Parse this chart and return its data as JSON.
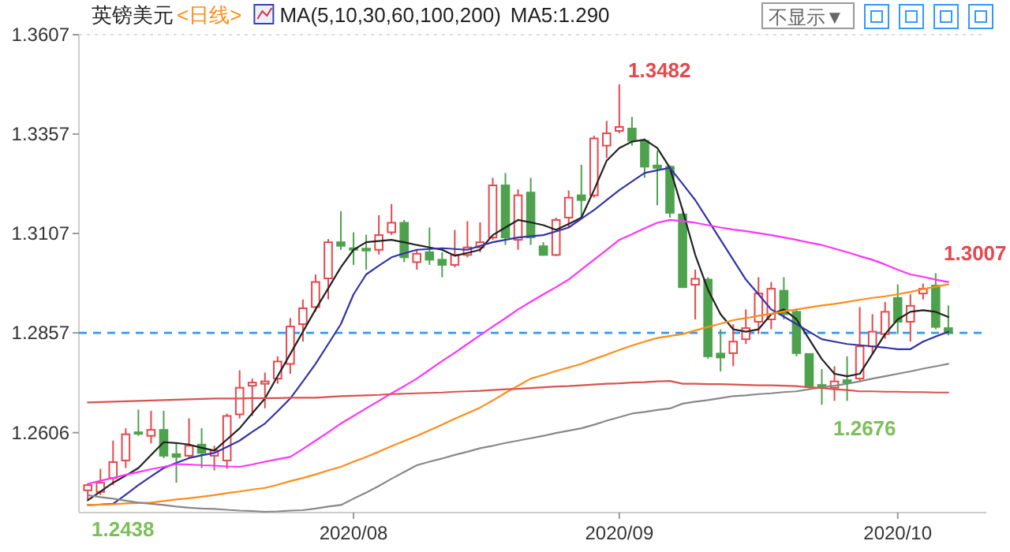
{
  "chart_data": {
    "type": "candlestick",
    "title": "英镑美元",
    "subtitle": "<日线>",
    "categories": [
      null,
      null,
      null,
      null,
      null,
      null,
      null,
      null,
      null,
      null,
      null,
      null,
      null,
      null,
      null,
      null,
      null,
      null,
      null,
      null,
      null,
      "2020/08",
      null,
      null,
      null,
      null,
      null,
      null,
      null,
      null,
      null,
      null,
      null,
      null,
      null,
      null,
      null,
      null,
      null,
      null,
      null,
      null,
      "2020/09",
      null,
      null,
      null,
      null,
      null,
      null,
      null,
      null,
      null,
      null,
      null,
      null,
      null,
      null,
      null,
      null,
      null,
      null,
      null,
      null,
      null,
      "2020/10",
      null,
      null,
      null,
      null
    ],
    "ohlc": [
      [
        1.2461,
        1.2478,
        1.2438,
        1.2474
      ],
      [
        1.2457,
        1.2515,
        1.2449,
        1.248
      ],
      [
        1.2492,
        1.2586,
        1.2474,
        1.2532
      ],
      [
        1.2536,
        1.2617,
        1.2517,
        1.2602
      ],
      [
        1.2607,
        1.2664,
        1.2598,
        1.2604
      ],
      [
        1.2598,
        1.2661,
        1.2579,
        1.2613
      ],
      [
        1.2613,
        1.2661,
        1.2542,
        1.2548
      ],
      [
        1.2552,
        1.2579,
        1.248,
        1.2545
      ],
      [
        1.2548,
        1.2642,
        1.2542,
        1.2573
      ],
      [
        1.2576,
        1.2617,
        1.2517,
        1.2555
      ],
      [
        1.2548,
        1.2573,
        1.2511,
        1.2561
      ],
      [
        1.2536,
        1.2654,
        1.2515,
        1.2648
      ],
      [
        1.2652,
        1.2763,
        1.2642,
        1.2719
      ],
      [
        1.2724,
        1.2742,
        1.2648,
        1.2732
      ],
      [
        1.2729,
        1.2757,
        1.2667,
        1.2735
      ],
      [
        1.2742,
        1.2798,
        1.2729,
        1.2785
      ],
      [
        1.2779,
        1.2894,
        1.2754,
        1.2873
      ],
      [
        1.2879,
        1.2941,
        1.2835,
        1.2919
      ],
      [
        1.2922,
        1.3004,
        1.291,
        1.2985
      ],
      [
        1.2994,
        1.3093,
        1.2941,
        1.3085
      ],
      [
        1.3085,
        1.3163,
        1.3066,
        1.3076
      ],
      [
        1.307,
        1.311,
        1.3028,
        1.3066
      ],
      [
        1.3069,
        1.3104,
        1.3016,
        1.3064
      ],
      [
        1.3066,
        1.3153,
        1.3054,
        1.3103
      ],
      [
        1.311,
        1.3181,
        1.3103,
        1.3134
      ],
      [
        1.3134,
        1.3141,
        1.3035,
        1.3047
      ],
      [
        1.3035,
        1.3066,
        1.3016,
        1.3056
      ],
      [
        1.306,
        1.3122,
        1.3028,
        1.3041
      ],
      [
        1.3041,
        1.306,
        1.2997,
        1.3028
      ],
      [
        1.3028,
        1.3116,
        1.3022,
        1.3053
      ],
      [
        1.3053,
        1.3138,
        1.3047,
        1.3072
      ],
      [
        1.3072,
        1.3135,
        1.306,
        1.3085
      ],
      [
        1.3097,
        1.3247,
        1.3091,
        1.3228
      ],
      [
        1.3228,
        1.3259,
        1.3078,
        1.3097
      ],
      [
        1.3091,
        1.3218,
        1.3066,
        1.3203
      ],
      [
        1.321,
        1.3247,
        1.3078,
        1.3097
      ],
      [
        1.3075,
        1.3085,
        1.3051,
        1.3053
      ],
      [
        1.3053,
        1.3147,
        1.305,
        1.3141
      ],
      [
        1.3147,
        1.3215,
        1.3122,
        1.3197
      ],
      [
        1.3203,
        1.328,
        1.3147,
        1.3191
      ],
      [
        1.3203,
        1.3353,
        1.3197,
        1.3346
      ],
      [
        1.3328,
        1.339,
        1.3297,
        1.3359
      ],
      [
        1.3365,
        1.3482,
        1.3359,
        1.3375
      ],
      [
        1.3371,
        1.34,
        1.3328,
        1.334
      ],
      [
        1.334,
        1.3346,
        1.3247,
        1.3275
      ],
      [
        1.3278,
        1.3315,
        1.3178,
        1.3272
      ],
      [
        1.3275,
        1.3278,
        1.3147,
        1.3159
      ],
      [
        1.3155,
        1.3159,
        1.297,
        1.2972
      ],
      [
        1.2978,
        1.3016,
        1.2891,
        1.2993
      ],
      [
        1.2991,
        1.2997,
        1.2792,
        1.2798
      ],
      [
        1.2805,
        1.2866,
        1.276,
        1.2795
      ],
      [
        1.2806,
        1.2879,
        1.2773,
        1.2835
      ],
      [
        1.2841,
        1.2916,
        1.2829,
        1.2869
      ],
      [
        1.2885,
        1.2997,
        1.2854,
        1.2956
      ],
      [
        1.2891,
        1.2985,
        1.2866,
        1.2968
      ],
      [
        1.2963,
        1.2997,
        1.2891,
        1.2904
      ],
      [
        1.291,
        1.2916,
        1.2798,
        1.2806
      ],
      [
        1.2804,
        1.2804,
        1.2717,
        1.2723
      ],
      [
        1.2726,
        1.2766,
        1.2676,
        1.272
      ],
      [
        1.2719,
        1.2773,
        1.2686,
        1.2735
      ],
      [
        1.2738,
        1.2798,
        1.2686,
        1.2732
      ],
      [
        1.2742,
        1.2922,
        1.2735,
        1.2823
      ],
      [
        1.2823,
        1.2904,
        1.2804,
        1.286
      ],
      [
        1.2854,
        1.2935,
        1.2842,
        1.291
      ],
      [
        1.2945,
        1.2979,
        1.2854,
        1.2885
      ],
      [
        1.2885,
        1.2954,
        1.2835,
        1.2925
      ],
      [
        1.2956,
        1.2981,
        1.2941,
        1.2968
      ],
      [
        1.2976,
        1.3007,
        1.2866,
        1.2872
      ],
      [
        1.2869,
        1.2926,
        1.2851,
        1.2857
      ]
    ],
    "series": [
      {
        "type": "line",
        "color": "#222222",
        "values": [
          1.2436,
          1.2458,
          1.248,
          1.2498,
          1.2517,
          1.255,
          1.2582,
          1.258,
          1.2576,
          1.2568,
          1.2561,
          1.2589,
          1.2617,
          1.2655,
          1.2692,
          1.2748,
          1.2804,
          1.286,
          1.2916,
          1.2969,
          1.3022,
          1.3066,
          1.3085,
          1.3088,
          1.3091,
          1.3085,
          1.3078,
          1.3072,
          1.3066,
          1.3051,
          1.3058,
          1.3066,
          1.3103,
          1.3122,
          1.3141,
          1.3135,
          1.3128,
          1.3116,
          1.3131,
          1.3147,
          1.3216,
          1.329,
          1.3322,
          1.3338,
          1.3343,
          1.3322,
          1.3272,
          1.3166,
          1.3053,
          1.2966,
          1.2904,
          1.2866,
          1.286,
          1.2866,
          1.2904,
          1.2916,
          1.2891,
          1.2841,
          1.2791,
          1.2754,
          1.2748,
          1.2754,
          1.2804,
          1.2854,
          1.2891,
          1.291,
          1.2914,
          1.291,
          1.2897
        ]
      },
      {
        "type": "line",
        "color": "#3333aa",
        "values": [
          1.2424,
          1.2425,
          1.2427,
          1.245,
          1.2474,
          1.2496,
          1.2517,
          1.253,
          1.2542,
          1.2549,
          1.2555,
          1.257,
          1.2586,
          1.2608,
          1.2629,
          1.266,
          1.2692,
          1.2735,
          1.2779,
          1.2829,
          1.2879,
          1.2954,
          1.3004,
          1.3026,
          1.3047,
          1.3057,
          1.3066,
          1.3068,
          1.307,
          1.3068,
          1.3066,
          1.3076,
          1.3085,
          1.3091,
          1.3097,
          1.31,
          1.3103,
          1.3112,
          1.3122,
          1.3144,
          1.3166,
          1.3191,
          1.3216,
          1.3238,
          1.3259,
          1.3266,
          1.3272,
          1.3232,
          1.3191,
          1.3141,
          1.3091,
          1.3041,
          1.2991,
          1.2954,
          1.2916,
          1.2898,
          1.2879,
          1.286,
          1.2841,
          1.2835,
          1.2829,
          1.2826,
          1.2823,
          1.282,
          1.2816,
          1.2816,
          1.2835,
          1.2848,
          1.286
        ]
      },
      {
        "type": "line",
        "color": "#ff33ff",
        "values": [
          1.2477,
          1.2485,
          1.2492,
          1.25,
          1.2507,
          1.2514,
          1.252,
          1.2527,
          1.2526,
          1.2524,
          1.2523,
          1.2521,
          1.252,
          1.2526,
          1.2533,
          1.2539,
          1.2545,
          1.2565,
          1.2586,
          1.2607,
          1.2629,
          1.2648,
          1.2667,
          1.2686,
          1.2705,
          1.2723,
          1.2742,
          1.2764,
          1.2786,
          1.2807,
          1.2829,
          1.2851,
          1.2873,
          1.2894,
          1.2916,
          1.2935,
          1.2954,
          1.2972,
          1.2991,
          1.3016,
          1.3041,
          1.3066,
          1.3091,
          1.3105,
          1.312,
          1.3134,
          1.3141,
          1.3138,
          1.3134,
          1.3128,
          1.3122,
          1.3117,
          1.3113,
          1.3108,
          1.3103,
          1.3097,
          1.3091,
          1.3084,
          1.3078,
          1.3069,
          1.306,
          1.305,
          1.3041,
          1.3029,
          1.3016,
          1.3004,
          1.2998,
          1.2991,
          1.2985
        ]
      },
      {
        "type": "line",
        "color": "#ff8c1a",
        "values": [
          1.2424,
          1.2425,
          1.2426,
          1.2428,
          1.2429,
          1.243,
          1.2434,
          1.2438,
          1.2441,
          1.2445,
          1.2449,
          1.2454,
          1.2458,
          1.2463,
          1.2467,
          1.2475,
          1.2484,
          1.2492,
          1.2501,
          1.2511,
          1.252,
          1.2533,
          1.2545,
          1.2558,
          1.2572,
          1.2585,
          1.2598,
          1.2612,
          1.2626,
          1.2641,
          1.2655,
          1.2669,
          1.2687,
          1.2706,
          1.2724,
          1.2742,
          1.2751,
          1.2761,
          1.277,
          1.2779,
          1.2791,
          1.2802,
          1.2814,
          1.2825,
          1.2835,
          1.2844,
          1.2849,
          1.2854,
          1.2863,
          1.2872,
          1.288,
          1.2889,
          1.2894,
          1.29,
          1.2905,
          1.2911,
          1.2916,
          1.2921,
          1.2926,
          1.293,
          1.2935,
          1.294,
          1.2945,
          1.2949,
          1.2954,
          1.296,
          1.2967,
          1.2973,
          1.2979
        ]
      },
      {
        "type": "line",
        "color": "#888888",
        "values": [
          1.2449,
          1.2444,
          1.244,
          1.2435,
          1.243,
          1.2427,
          1.2424,
          1.242,
          1.2417,
          1.2415,
          1.2414,
          1.2412,
          1.241,
          1.2409,
          1.2407,
          1.2408,
          1.241,
          1.2411,
          1.2415,
          1.242,
          1.2424,
          1.244,
          1.2455,
          1.2472,
          1.249,
          1.2507,
          1.2524,
          1.2533,
          1.2541,
          1.255,
          1.2558,
          1.2567,
          1.2573,
          1.258,
          1.2586,
          1.2592,
          1.2598,
          1.2605,
          1.2611,
          1.2617,
          1.2626,
          1.2636,
          1.2645,
          1.2654,
          1.2658,
          1.2663,
          1.2667,
          1.2679,
          1.2684,
          1.2688,
          1.2693,
          1.2698,
          1.27,
          1.2703,
          1.2705,
          1.2708,
          1.271,
          1.2715,
          1.272,
          1.2724,
          1.2729,
          1.2735,
          1.2742,
          1.2748,
          1.2754,
          1.276,
          1.2767,
          1.2773,
          1.2779
        ]
      },
      {
        "type": "line",
        "color": "#d9534f",
        "values": [
          1.2682,
          1.2683,
          1.2684,
          1.2685,
          1.2686,
          1.2687,
          1.2688,
          1.2689,
          1.269,
          1.2691,
          1.2692,
          1.2692,
          1.2692,
          1.2693,
          1.2693,
          1.2693,
          1.2694,
          1.2694,
          1.2694,
          1.2696,
          1.2698,
          1.2699,
          1.27,
          1.2701,
          1.2703,
          1.2704,
          1.2705,
          1.2706,
          1.2707,
          1.2709,
          1.271,
          1.2711,
          1.2713,
          1.2715,
          1.2716,
          1.2718,
          1.272,
          1.2722,
          1.2723,
          1.2725,
          1.2727,
          1.2729,
          1.273,
          1.2732,
          1.2733,
          1.2735,
          1.2736,
          1.2729,
          1.2729,
          1.2728,
          1.2728,
          1.2727,
          1.2726,
          1.2725,
          1.2725,
          1.2724,
          1.2723,
          1.272,
          1.2718,
          1.2715,
          1.2713,
          1.271,
          1.271,
          1.2709,
          1.2709,
          1.2708,
          1.2708,
          1.2707,
          1.2707
        ]
      }
    ],
    "ylim": [
      1.2405,
      1.3607
    ],
    "yticks": [
      1.2606,
      1.2857,
      1.3107,
      1.3357,
      1.3607
    ],
    "ref_lines": [
      {
        "axis": "y",
        "value": 1.2857,
        "label": null,
        "color": "#3399ff",
        "line_style": "dashed"
      }
    ],
    "annotations": [
      "MA(5,10,30,60,100,200)",
      "MA5:1.290",
      "不显示▼",
      "1.3482",
      "1.3007",
      "1.2676",
      "1.2438"
    ]
  }
}
